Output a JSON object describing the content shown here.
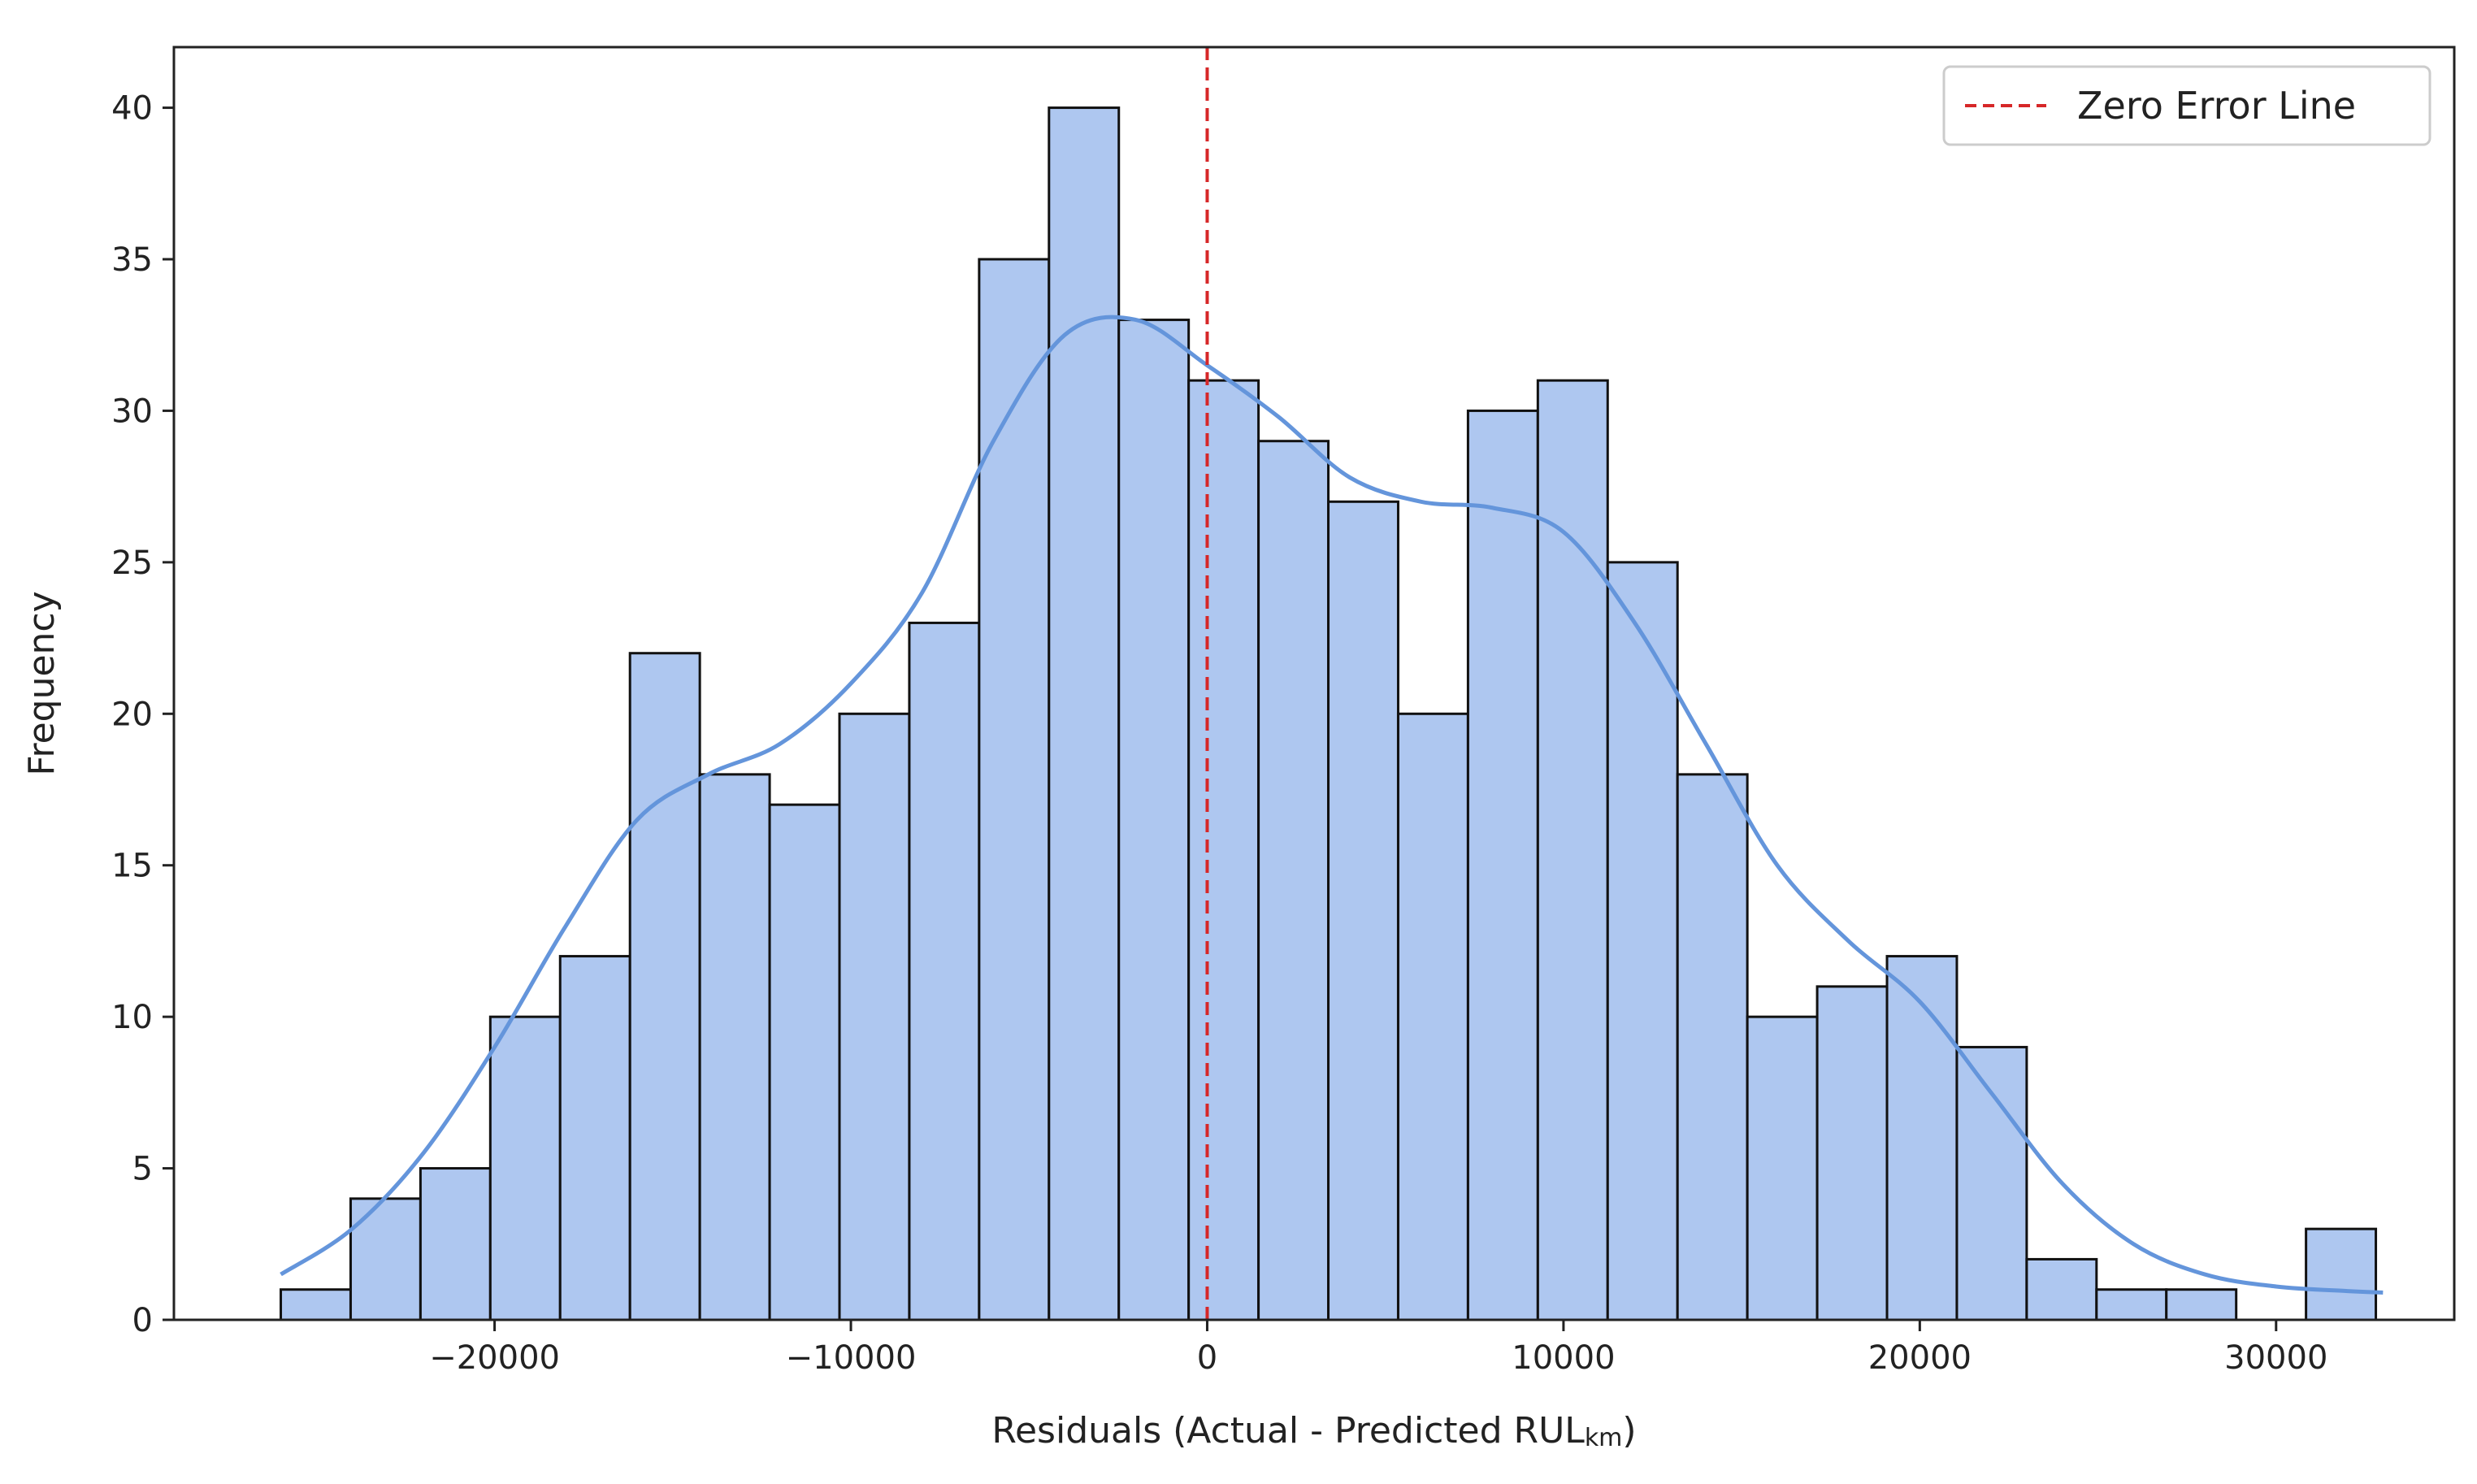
{
  "chart_data": {
    "type": "histogram",
    "title": "",
    "xlabel": "Residuals (Actual - Predicted RUL",
    "xlabel_subscript": "km",
    "xlabel_close": ")",
    "ylabel": "Frequency",
    "xlim": [
      -29000,
      35000
    ],
    "ylim": [
      0,
      42
    ],
    "xticks": [
      -20000,
      -10000,
      0,
      10000,
      20000,
      30000
    ],
    "xtick_labels": [
      "−20000",
      "−10000",
      "0",
      "10000",
      "20000",
      "30000"
    ],
    "yticks": [
      0,
      5,
      10,
      15,
      20,
      25,
      30,
      35,
      40
    ],
    "ytick_labels": [
      "0",
      "5",
      "10",
      "15",
      "20",
      "25",
      "30",
      "35",
      "40"
    ],
    "bin_start": -26000,
    "bin_width": 1960,
    "values": [
      1,
      4,
      5,
      10,
      12,
      22,
      18,
      17,
      20,
      23,
      35,
      40,
      33,
      31,
      29,
      27,
      20,
      30,
      31,
      25,
      18,
      10,
      11,
      12,
      9,
      2,
      1,
      1,
      0,
      3
    ],
    "kde": {
      "x": [
        -26000,
        -24000,
        -22000,
        -20000,
        -18000,
        -16000,
        -14000,
        -12000,
        -10000,
        -8000,
        -6000,
        -4000,
        -2000,
        0,
        2000,
        4000,
        6000,
        8000,
        10000,
        12000,
        14000,
        16000,
        18000,
        20000,
        22000,
        24000,
        26000,
        28000,
        30000,
        32000,
        33000
      ],
      "y": [
        1.5,
        3.0,
        5.5,
        9.0,
        13.0,
        16.5,
        18.0,
        19.0,
        21.0,
        24.0,
        29.0,
        32.5,
        33.0,
        31.5,
        29.8,
        27.8,
        27.0,
        26.8,
        26.0,
        23.0,
        19.0,
        15.0,
        12.5,
        10.5,
        7.5,
        4.5,
        2.5,
        1.5,
        1.1,
        0.95,
        0.9
      ]
    },
    "reference_line": {
      "x": 0,
      "label": "Zero Error Line",
      "color": "#d62728"
    },
    "colors": {
      "bar_fill": "#aec7f0",
      "bar_edge": "#111111",
      "kde": "#6495db",
      "axis": "#222222"
    },
    "legend": {
      "position": "top-right",
      "entries": [
        "Zero Error Line"
      ]
    }
  }
}
